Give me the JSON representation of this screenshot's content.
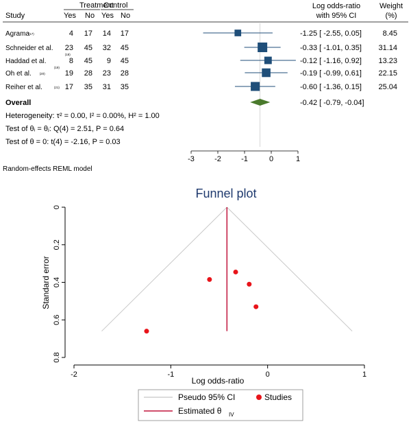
{
  "chart_data": [
    {
      "type": "forest",
      "headers": {
        "study": "Study",
        "treatment": "Treatment",
        "control": "Control",
        "yes": "Yes",
        "no": "No",
        "effect_line1": "Log odds-ratio",
        "effect_line2": "with 95% CI",
        "weight_line1": "Weight",
        "weight_line2": "(%)"
      },
      "xlim": [
        -3,
        1
      ],
      "ticks": [
        "-3",
        "-2",
        "-1",
        "0",
        "1"
      ],
      "tick_values": [
        -3,
        -2,
        -1,
        0,
        1
      ],
      "studies": [
        {
          "name": "Agrama",
          "ref": "(17)",
          "t_yes": "4",
          "t_no": "17",
          "c_yes": "14",
          "c_no": "17",
          "est": -1.25,
          "lo": -2.55,
          "hi": 0.05,
          "ci_text": "-1.25 [ -2.55,  0.05]",
          "weight": 8.45,
          "weight_text": "8.45"
        },
        {
          "name": "Schneider et al.",
          "ref": "(18)",
          "t_yes": "23",
          "t_no": "45",
          "c_yes": "32",
          "c_no": "45",
          "est": -0.33,
          "lo": -1.01,
          "hi": 0.35,
          "ci_text": "-0.33 [ -1.01,  0.35]",
          "weight": 31.14,
          "weight_text": "31.14"
        },
        {
          "name": "Haddad et al.",
          "ref": "(19)",
          "t_yes": "8",
          "t_no": "45",
          "c_yes": "9",
          "c_no": "45",
          "est": -0.12,
          "lo": -1.16,
          "hi": 0.92,
          "ci_text": "-0.12 [ -1.16,  0.92]",
          "weight": 13.23,
          "weight_text": "13.23"
        },
        {
          "name": "Oh et al.",
          "ref": "(20)",
          "t_yes": "19",
          "t_no": "28",
          "c_yes": "23",
          "c_no": "28",
          "est": -0.19,
          "lo": -0.99,
          "hi": 0.61,
          "ci_text": "-0.19 [ -0.99,  0.61]",
          "weight": 22.15,
          "weight_text": "22.15"
        },
        {
          "name": "Reiher et al.",
          "ref": "(21)",
          "t_yes": "17",
          "t_no": "35",
          "c_yes": "31",
          "c_no": "35",
          "est": -0.6,
          "lo": -1.36,
          "hi": 0.15,
          "ci_text": "-0.60 [ -1.36,  0.15]",
          "weight": 25.04,
          "weight_text": "25.04"
        }
      ],
      "overall": {
        "label": "Overall",
        "est": -0.42,
        "lo": -0.79,
        "hi": -0.04,
        "ci_text": "-0.42 [ -0.79, -0.04]"
      },
      "stats": [
        "Heterogeneity: τ² = 0.00, I² = 0.00%, H² = 1.00",
        "Test of θᵢ = θⱼ: Q(4) = 2.51, P = 0.64",
        "Test of θ = 0: t(4) = -2.16, P = 0.03"
      ],
      "model_note": "Random-effects REML model",
      "colors": {
        "marker": "#1f4e79",
        "overall": "#4a7a2c",
        "ref_line": "#cccccc"
      }
    },
    {
      "type": "scatter",
      "title": "Funnel plot",
      "xlabel": "Log odds-ratio",
      "ylabel": "Standard error",
      "xlim": [
        -2,
        1
      ],
      "ylim": [
        0,
        0.8
      ],
      "y_reversed": true,
      "x_ticks": [
        -2,
        -1,
        0,
        1
      ],
      "x_tick_labels": [
        "-2",
        "-1",
        "0",
        "1"
      ],
      "y_ticks": [
        0,
        0.2,
        0.4,
        0.6,
        0.8
      ],
      "y_tick_labels": [
        "0",
        "0.2",
        "0.4",
        "0.6",
        "0.8"
      ],
      "points": [
        {
          "x": -1.25,
          "y": 0.66
        },
        {
          "x": -0.6,
          "y": 0.385
        },
        {
          "x": -0.33,
          "y": 0.345
        },
        {
          "x": -0.19,
          "y": 0.41
        },
        {
          "x": -0.12,
          "y": 0.53
        }
      ],
      "estimate": -0.42,
      "pseudo_ci_max_se": 0.66,
      "legend": {
        "ci": "Pseudo 95% CI",
        "studies": "Studies",
        "estimate": "Estimated θ",
        "estimate_sub": "IV"
      },
      "colors": {
        "points": "#e8141a",
        "estimate": "#c0143c",
        "ci": "#c8c8c8",
        "title": "#1f3a6e"
      }
    }
  ]
}
